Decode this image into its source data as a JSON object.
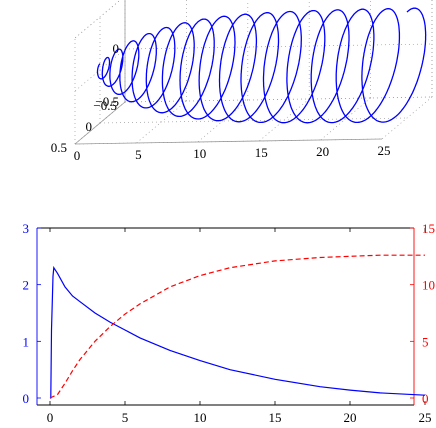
{
  "chart_data": [
    {
      "type": "line",
      "projection": "3d",
      "title": "",
      "xlabel": "",
      "ylabel": "",
      "zlabel": "",
      "xlim": [
        0,
        25
      ],
      "ylim": [
        -0.5,
        0.5
      ],
      "zlim": [
        -0.5,
        0.5
      ],
      "grid": true,
      "box": true,
      "x_ticks": [
        "0",
        "5",
        "10",
        "15",
        "20",
        "25"
      ],
      "y_ticks": [
        "−0.5",
        "0",
        "0.5"
      ],
      "z_ticks": [
        "−0.5",
        "0",
        "0.5"
      ],
      "series": [
        {
          "style": "solid",
          "color": "#0000ff",
          "description_values": {
            "x_start": 0,
            "x_end": 25,
            "loops": 16,
            "radius_max": 0.5
          }
        }
      ]
    },
    {
      "type": "line",
      "title": "",
      "xlabel": "",
      "ylabel_left": "",
      "ylabel_right": "",
      "xlim": [
        0,
        25
      ],
      "ylim_left": [
        0,
        3
      ],
      "ylim_right": [
        0,
        15
      ],
      "grid": false,
      "x_ticks": [
        "0",
        "5",
        "10",
        "15",
        "20",
        "25"
      ],
      "y_left_ticks": [
        "0",
        "1",
        "2",
        "3"
      ],
      "y_right_ticks": [
        "0",
        "5",
        "10",
        "15"
      ],
      "left_axis_color": "#0000ff",
      "right_axis_color": "#ff0000",
      "series": [
        {
          "axis": "left",
          "style": "solid",
          "color": "#0000ff",
          "x": [
            0,
            0.05,
            0.1,
            0.2,
            0.25,
            0.3,
            0.5,
            1,
            1.5,
            2,
            3,
            4,
            5,
            6,
            8,
            10,
            12,
            15,
            18,
            20,
            22,
            25
          ],
          "y": [
            0,
            0,
            1.2,
            2.15,
            2.3,
            2.28,
            2.2,
            1.96,
            1.8,
            1.7,
            1.5,
            1.34,
            1.2,
            1.06,
            0.84,
            0.66,
            0.5,
            0.33,
            0.2,
            0.14,
            0.09,
            0.05
          ]
        },
        {
          "axis": "right",
          "style": "dashed",
          "color": "#ff0000",
          "x": [
            0,
            0.5,
            1,
            1.5,
            2,
            3,
            4,
            5,
            6,
            8,
            10,
            12,
            15,
            18,
            20,
            22,
            25
          ],
          "y": [
            0,
            0.3,
            1.3,
            2.4,
            3.4,
            5.0,
            6.3,
            7.4,
            8.3,
            9.8,
            10.8,
            11.5,
            12.1,
            12.4,
            12.5,
            12.6,
            12.6
          ]
        }
      ]
    }
  ]
}
